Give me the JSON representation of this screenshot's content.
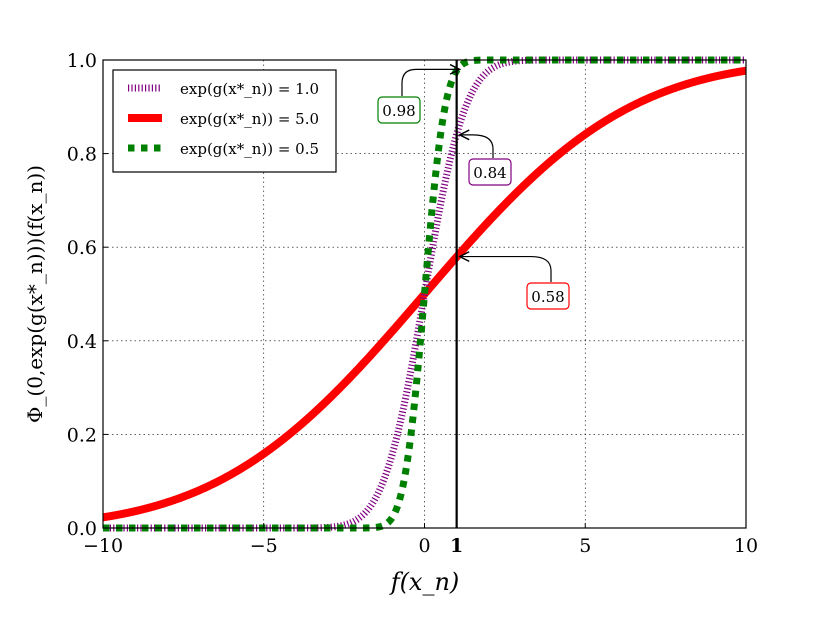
{
  "chart_data": {
    "type": "line",
    "title": "",
    "xlabel": "f(x_n)",
    "ylabel": "Φ_(0,exp(g(x*_n)))(f(x_n))",
    "xlim": [
      -10,
      10
    ],
    "ylim": [
      0,
      1
    ],
    "grid": true,
    "legend_position": "top-left",
    "xticks": [
      -10,
      -5,
      0,
      1,
      5,
      10
    ],
    "xtick_labels": [
      "−10",
      "−5",
      "0",
      "1",
      "5",
      "10"
    ],
    "yticks": [
      0,
      0.2,
      0.4,
      0.6,
      0.8,
      1.0
    ],
    "ytick_labels": [
      "0.0",
      "0.2",
      "0.4",
      "0.6",
      "0.8",
      "1.0"
    ],
    "vertical_line_x": 1,
    "sample_x": [
      -10,
      -8,
      -6,
      -4,
      -2,
      0,
      2,
      4,
      6,
      8,
      10
    ],
    "series": [
      {
        "name": "exp(g(x*_n)) = 1.0",
        "std": 1.0,
        "color": "#800080",
        "style": "hatched",
        "values": [
          0,
          0,
          0,
          0,
          0.023,
          0.5,
          0.977,
          1,
          1,
          1,
          1
        ]
      },
      {
        "name": "exp(g(x*_n)) = 5.0",
        "std": 5.0,
        "color": "#ff0000",
        "style": "solid",
        "values": [
          0.023,
          0.055,
          0.115,
          0.212,
          0.345,
          0.5,
          0.655,
          0.788,
          0.885,
          0.945,
          0.977
        ]
      },
      {
        "name": "exp(g(x*_n)) = 0.5",
        "std": 0.5,
        "color": "#008000",
        "style": "dotted",
        "values": [
          0,
          0,
          0,
          0,
          0,
          0.5,
          1,
          1,
          1,
          1,
          1
        ]
      }
    ],
    "annotations": [
      {
        "text": "0.98",
        "x": 1,
        "y": 0.98,
        "color": "#008000"
      },
      {
        "text": "0.84",
        "x": 1,
        "y": 0.84,
        "color": "#800080"
      },
      {
        "text": "0.58",
        "x": 1,
        "y": 0.58,
        "color": "#ff0000"
      }
    ]
  }
}
